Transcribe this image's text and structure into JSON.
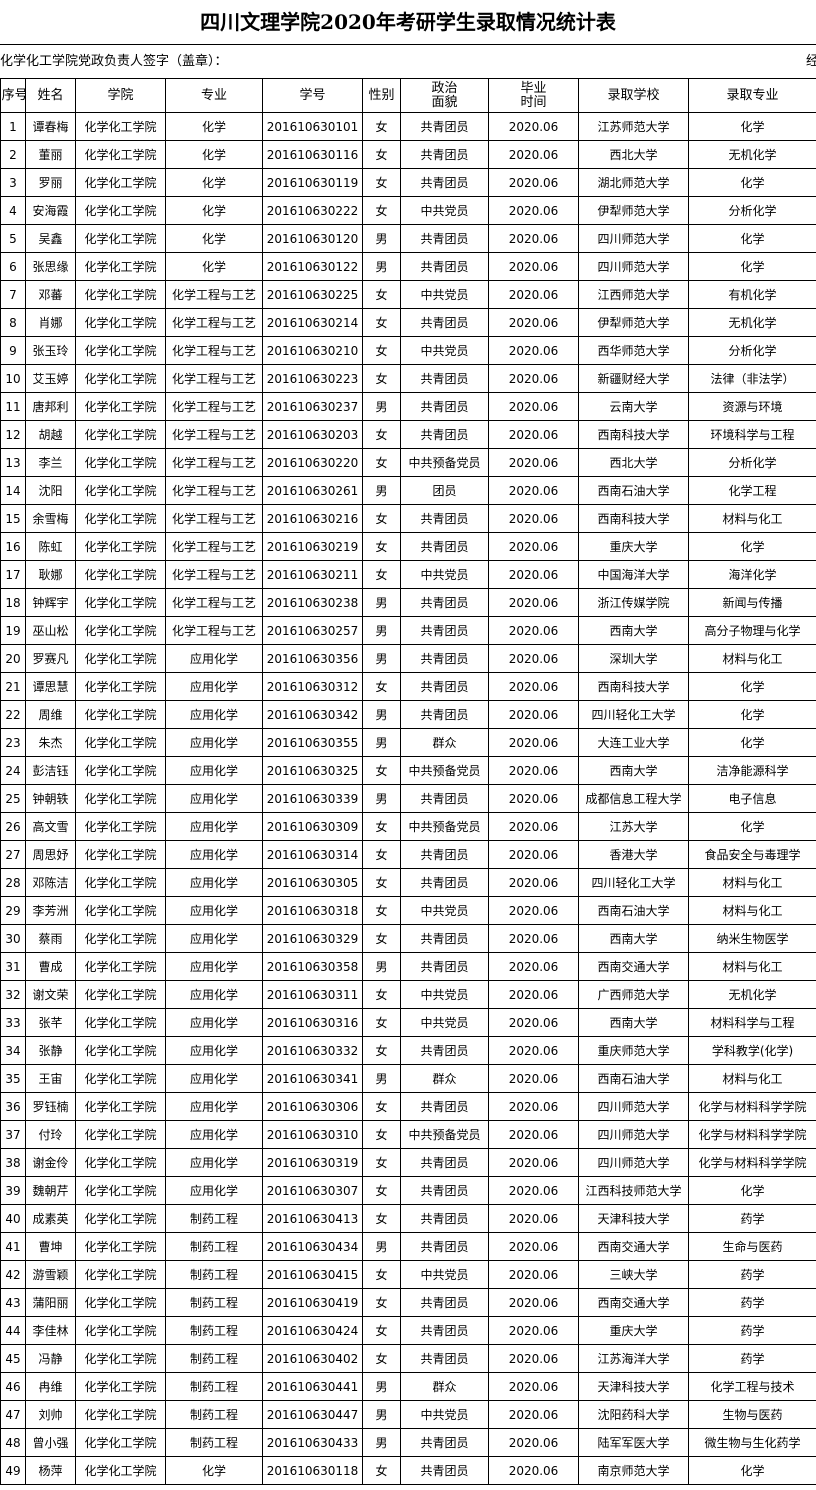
{
  "header": {
    "title": "四川文理学院2020年考研学生录取情况统计表",
    "signature": "化学化工学院党政负责人签字（盖章）：",
    "right_note": "经"
  },
  "table": {
    "columns": [
      "序号",
      "姓名",
      "学院",
      "专业",
      "学号",
      "性别",
      "政治面貌",
      "毕业时间",
      "录取学校",
      "录取专业"
    ],
    "rows": [
      [
        "1",
        "谭春梅",
        "化学化工学院",
        "化学",
        "201610630101",
        "女",
        "共青团员",
        "2020.06",
        "江苏师范大学",
        "化学"
      ],
      [
        "2",
        "董丽",
        "化学化工学院",
        "化学",
        "201610630116",
        "女",
        "共青团员",
        "2020.06",
        "西北大学",
        "无机化学"
      ],
      [
        "3",
        "罗丽",
        "化学化工学院",
        "化学",
        "201610630119",
        "女",
        "共青团员",
        "2020.06",
        "湖北师范大学",
        "化学"
      ],
      [
        "4",
        "安海霞",
        "化学化工学院",
        "化学",
        "201610630222",
        "女",
        "中共党员",
        "2020.06",
        "伊犁师范大学",
        "分析化学"
      ],
      [
        "5",
        "吴鑫",
        "化学化工学院",
        "化学",
        "201610630120",
        "男",
        "共青团员",
        "2020.06",
        "四川师范大学",
        "化学"
      ],
      [
        "6",
        "张思缘",
        "化学化工学院",
        "化学",
        "201610630122",
        "男",
        "共青团员",
        "2020.06",
        "四川师范大学",
        "化学"
      ],
      [
        "7",
        "邓蕃",
        "化学化工学院",
        "化学工程与工艺",
        "201610630225",
        "女",
        "中共党员",
        "2020.06",
        "江西师范大学",
        "有机化学"
      ],
      [
        "8",
        "肖娜",
        "化学化工学院",
        "化学工程与工艺",
        "201610630214",
        "女",
        "共青团员",
        "2020.06",
        "伊犁师范大学",
        "无机化学"
      ],
      [
        "9",
        "张玉玲",
        "化学化工学院",
        "化学工程与工艺",
        "201610630210",
        "女",
        "中共党员",
        "2020.06",
        "西华师范大学",
        "分析化学"
      ],
      [
        "10",
        "艾玉婷",
        "化学化工学院",
        "化学工程与工艺",
        "201610630223",
        "女",
        "共青团员",
        "2020.06",
        "新疆财经大学",
        "法律（非法学）"
      ],
      [
        "11",
        "唐邦利",
        "化学化工学院",
        "化学工程与工艺",
        "201610630237",
        "男",
        "共青团员",
        "2020.06",
        "云南大学",
        "资源与环境"
      ],
      [
        "12",
        "胡越",
        "化学化工学院",
        "化学工程与工艺",
        "201610630203",
        "女",
        "共青团员",
        "2020.06",
        "西南科技大学",
        "环境科学与工程"
      ],
      [
        "13",
        "李兰",
        "化学化工学院",
        "化学工程与工艺",
        "201610630220",
        "女",
        "中共预备党员",
        "2020.06",
        "西北大学",
        "分析化学"
      ],
      [
        "14",
        "沈阳",
        "化学化工学院",
        "化学工程与工艺",
        "201610630261",
        "男",
        "团员",
        "2020.06",
        "西南石油大学",
        "化学工程"
      ],
      [
        "15",
        "余雪梅",
        "化学化工学院",
        "化学工程与工艺",
        "201610630216",
        "女",
        "共青团员",
        "2020.06",
        "西南科技大学",
        "材料与化工"
      ],
      [
        "16",
        "陈虹",
        "化学化工学院",
        "化学工程与工艺",
        "201610630219",
        "女",
        "共青团员",
        "2020.06",
        "重庆大学",
        "化学"
      ],
      [
        "17",
        "耿娜",
        "化学化工学院",
        "化学工程与工艺",
        "201610630211",
        "女",
        "中共党员",
        "2020.06",
        "中国海洋大学",
        "海洋化学"
      ],
      [
        "18",
        "钟辉宇",
        "化学化工学院",
        "化学工程与工艺",
        "201610630238",
        "男",
        "共青团员",
        "2020.06",
        "浙江传媒学院",
        "新闻与传播"
      ],
      [
        "19",
        "巫山松",
        "化学化工学院",
        "化学工程与工艺",
        "201610630257",
        "男",
        "共青团员",
        "2020.06",
        "西南大学",
        "高分子物理与化学"
      ],
      [
        "20",
        "罗赛凡",
        "化学化工学院",
        "应用化学",
        "201610630356",
        "男",
        "共青团员",
        "2020.06",
        "深圳大学",
        "材料与化工"
      ],
      [
        "21",
        "谭思慧",
        "化学化工学院",
        "应用化学",
        "201610630312",
        "女",
        "共青团员",
        "2020.06",
        "西南科技大学",
        "化学"
      ],
      [
        "22",
        "周维",
        "化学化工学院",
        "应用化学",
        "201610630342",
        "男",
        "共青团员",
        "2020.06",
        "四川轻化工大学",
        "化学"
      ],
      [
        "23",
        "朱杰",
        "化学化工学院",
        "应用化学",
        "201610630355",
        "男",
        "群众",
        "2020.06",
        "大连工业大学",
        "化学"
      ],
      [
        "24",
        "彭洁钰",
        "化学化工学院",
        "应用化学",
        "201610630325",
        "女",
        "中共预备党员",
        "2020.06",
        "西南大学",
        "洁净能源科学"
      ],
      [
        "25",
        "钟朝轶",
        "化学化工学院",
        "应用化学",
        "201610630339",
        "男",
        "共青团员",
        "2020.06",
        "成都信息工程大学",
        "电子信息"
      ],
      [
        "26",
        "高文雪",
        "化学化工学院",
        "应用化学",
        "201610630309",
        "女",
        "中共预备党员",
        "2020.06",
        "江苏大学",
        "化学"
      ],
      [
        "27",
        "周思妤",
        "化学化工学院",
        "应用化学",
        "201610630314",
        "女",
        "共青团员",
        "2020.06",
        "香港大学",
        "食品安全与毒理学"
      ],
      [
        "28",
        "邓陈洁",
        "化学化工学院",
        "应用化学",
        "201610630305",
        "女",
        "共青团员",
        "2020.06",
        "四川轻化工大学",
        "材料与化工"
      ],
      [
        "29",
        "李芳洲",
        "化学化工学院",
        "应用化学",
        "201610630318",
        "女",
        "中共党员",
        "2020.06",
        "西南石油大学",
        "材料与化工"
      ],
      [
        "30",
        "蔡雨",
        "化学化工学院",
        "应用化学",
        "201610630329",
        "女",
        "共青团员",
        "2020.06",
        "西南大学",
        "纳米生物医学"
      ],
      [
        "31",
        "曹成",
        "化学化工学院",
        "应用化学",
        "201610630358",
        "男",
        "共青团员",
        "2020.06",
        "西南交通大学",
        "材料与化工"
      ],
      [
        "32",
        "谢文荣",
        "化学化工学院",
        "应用化学",
        "201610630311",
        "女",
        "中共党员",
        "2020.06",
        "广西师范大学",
        "无机化学"
      ],
      [
        "33",
        "张芊",
        "化学化工学院",
        "应用化学",
        "201610630316",
        "女",
        "中共党员",
        "2020.06",
        "西南大学",
        "材料科学与工程"
      ],
      [
        "34",
        "张静",
        "化学化工学院",
        "应用化学",
        "201610630332",
        "女",
        "共青团员",
        "2020.06",
        "重庆师范大学",
        "学科教学(化学)"
      ],
      [
        "35",
        "王宙",
        "化学化工学院",
        "应用化学",
        "201610630341",
        "男",
        "群众",
        "2020.06",
        "西南石油大学",
        "材料与化工"
      ],
      [
        "36",
        "罗钰楠",
        "化学化工学院",
        "应用化学",
        "201610630306",
        "女",
        "共青团员",
        "2020.06",
        "四川师范大学",
        "化学与材料科学学院"
      ],
      [
        "37",
        "付玲",
        "化学化工学院",
        "应用化学",
        "201610630310",
        "女",
        "中共预备党员",
        "2020.06",
        "四川师范大学",
        "化学与材料科学学院"
      ],
      [
        "38",
        "谢金伶",
        "化学化工学院",
        "应用化学",
        "201610630319",
        "女",
        "共青团员",
        "2020.06",
        "四川师范大学",
        "化学与材料科学学院"
      ],
      [
        "39",
        "魏朝芹",
        "化学化工学院",
        "应用化学",
        "201610630307",
        "女",
        "共青团员",
        "2020.06",
        "江西科技师范大学",
        "化学"
      ],
      [
        "40",
        "成素英",
        "化学化工学院",
        "制药工程",
        "201610630413",
        "女",
        "共青团员",
        "2020.06",
        "天津科技大学",
        "药学"
      ],
      [
        "41",
        "曹坤",
        "化学化工学院",
        "制药工程",
        "201610630434",
        "男",
        "共青团员",
        "2020.06",
        "西南交通大学",
        "生命与医药"
      ],
      [
        "42",
        "游雪颖",
        "化学化工学院",
        "制药工程",
        "201610630415",
        "女",
        "中共党员",
        "2020.06",
        "三峡大学",
        "药学"
      ],
      [
        "43",
        "蒲阳丽",
        "化学化工学院",
        "制药工程",
        "201610630419",
        "女",
        "共青团员",
        "2020.06",
        "西南交通大学",
        "药学"
      ],
      [
        "44",
        "李佳林",
        "化学化工学院",
        "制药工程",
        "201610630424",
        "女",
        "共青团员",
        "2020.06",
        "重庆大学",
        "药学"
      ],
      [
        "45",
        "冯静",
        "化学化工学院",
        "制药工程",
        "201610630402",
        "女",
        "共青团员",
        "2020.06",
        "江苏海洋大学",
        "药学"
      ],
      [
        "46",
        "冉维",
        "化学化工学院",
        "制药工程",
        "201610630441",
        "男",
        "群众",
        "2020.06",
        "天津科技大学",
        "化学工程与技术"
      ],
      [
        "47",
        "刘帅",
        "化学化工学院",
        "制药工程",
        "201610630447",
        "男",
        "中共党员",
        "2020.06",
        "沈阳药科大学",
        "生物与医药"
      ],
      [
        "48",
        "曾小强",
        "化学化工学院",
        "制药工程",
        "201610630433",
        "男",
        "共青团员",
        "2020.06",
        "陆军军医大学",
        "微生物与生化药学"
      ],
      [
        "49",
        "杨萍",
        "化学化工学院",
        "化学",
        "201610630118",
        "女",
        "共青团员",
        "2020.06",
        "南京师范大学",
        "化学"
      ]
    ]
  }
}
